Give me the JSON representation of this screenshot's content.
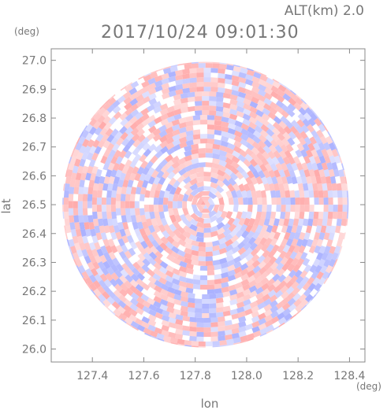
{
  "header": {
    "altitude_label": "ALT(km) 2.0",
    "timestamp": "2017/10/24 09:01:30"
  },
  "chart_data": {
    "type": "heatmap",
    "description_units": {
      "x": "deg",
      "y": "deg"
    },
    "xlabel": "lon",
    "ylabel": "lat",
    "xunit": "(deg)",
    "yunit": "(deg)",
    "xlim": [
      127.24,
      128.46
    ],
    "ylim": [
      25.955,
      27.04
    ],
    "xticks": [
      "127.4",
      "127.6",
      "127.8",
      "128.0",
      "128.2",
      "128.4"
    ],
    "xtick_values": [
      127.4,
      127.6,
      127.8,
      128.0,
      128.2,
      128.4
    ],
    "yticks": [
      "26.0",
      "26.1",
      "26.2",
      "26.3",
      "26.4",
      "26.5",
      "26.6",
      "26.7",
      "26.8",
      "26.9",
      "27.0"
    ],
    "ytick_values": [
      26.0,
      26.1,
      26.2,
      26.3,
      26.4,
      26.5,
      26.6,
      26.7,
      26.8,
      26.9,
      27.0
    ],
    "center": {
      "lon": 127.84,
      "lat": 26.5
    },
    "radius_deg_lat": 0.495,
    "colors": {
      "positive": "#ff9c9c",
      "negative": "#9aa2ff",
      "frame": "#888888"
    }
  }
}
